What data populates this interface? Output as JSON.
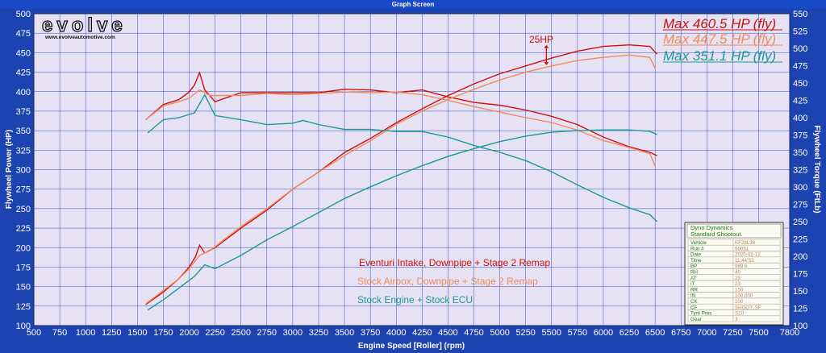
{
  "window": {
    "title": "Graph Screen"
  },
  "brand": {
    "logo_text": "evolve",
    "url": "www.evolveautomotive.com"
  },
  "colors": {
    "red": "#cc1111",
    "orange": "#f08a5a",
    "teal": "#1a9a96",
    "plot_bg": "#e6e2f4",
    "frame": "#1d43b0"
  },
  "chart_data": {
    "type": "line",
    "xlabel": "Engine Speed [Roller] (rpm)",
    "ylabel_left": "Flywheel Power (HP)",
    "ylabel_right": "Flywheel Torque (FtLb)",
    "xlim": [
      500,
      7800
    ],
    "ylim_left": [
      100,
      500
    ],
    "ylim_right": [
      100,
      550
    ],
    "x_ticks": [
      "500",
      "750",
      "1000",
      "1250",
      "1500",
      "1750",
      "2000",
      "2250",
      "2500",
      "2750",
      "3000",
      "3250",
      "3500",
      "3750",
      "4000",
      "4250",
      "4500",
      "4750",
      "5000",
      "5250",
      "5500",
      "5750",
      "6000",
      "6250",
      "6500",
      "6750",
      "7000",
      "7250",
      "7500",
      "7800"
    ],
    "y_ticks_left": [
      "100",
      "125",
      "150",
      "175",
      "200",
      "225",
      "250",
      "275",
      "300",
      "325",
      "350",
      "375",
      "400",
      "425",
      "450",
      "475",
      "500"
    ],
    "y_ticks_right": [
      "100",
      "125",
      "150",
      "175",
      "200",
      "225",
      "250",
      "275",
      "300",
      "325",
      "350",
      "375",
      "400",
      "425",
      "450",
      "475",
      "500",
      "525",
      "550"
    ],
    "max_labels": [
      {
        "text": "Max 460.5 HP (fly)",
        "color": "#cc1111"
      },
      {
        "text": "Max 447.5 HP (fly)",
        "color": "#f08a5a"
      },
      {
        "text": "Max 351.1 HP (fly)",
        "color": "#1a9a96"
      }
    ],
    "annotation": {
      "text": "25HP",
      "x": 5450,
      "y_top_hp": 460,
      "y_bottom_hp": 434
    },
    "series": [
      {
        "name": "Eventuri Intake, Downpipe + Stage 2 Remap",
        "color": "#cc1111",
        "power": [
          [
            1580,
            127
          ],
          [
            1750,
            143
          ],
          [
            1900,
            160
          ],
          [
            2000,
            175
          ],
          [
            2060,
            188
          ],
          [
            2100,
            203
          ],
          [
            2150,
            193
          ],
          [
            2250,
            200
          ],
          [
            2500,
            225
          ],
          [
            2750,
            248
          ],
          [
            3000,
            275
          ],
          [
            3250,
            297
          ],
          [
            3500,
            322
          ],
          [
            3750,
            340
          ],
          [
            4000,
            360
          ],
          [
            4250,
            378
          ],
          [
            4500,
            395
          ],
          [
            4750,
            410
          ],
          [
            5000,
            423
          ],
          [
            5250,
            433
          ],
          [
            5500,
            443
          ],
          [
            5750,
            452
          ],
          [
            6000,
            458
          ],
          [
            6250,
            460
          ],
          [
            6450,
            458
          ],
          [
            6520,
            448
          ]
        ],
        "torque": [
          [
            1580,
            397
          ],
          [
            1750,
            419
          ],
          [
            1900,
            426
          ],
          [
            2000,
            437
          ],
          [
            2050,
            447
          ],
          [
            2100,
            465
          ],
          [
            2150,
            440
          ],
          [
            2250,
            423
          ],
          [
            2500,
            436
          ],
          [
            2750,
            436
          ],
          [
            3000,
            436
          ],
          [
            3250,
            436
          ],
          [
            3500,
            441
          ],
          [
            3750,
            440
          ],
          [
            4000,
            436
          ],
          [
            4250,
            440
          ],
          [
            4500,
            430
          ],
          [
            4750,
            422
          ],
          [
            5000,
            418
          ],
          [
            5250,
            411
          ],
          [
            5500,
            402
          ],
          [
            5750,
            390
          ],
          [
            6000,
            372
          ],
          [
            6250,
            358
          ],
          [
            6450,
            350
          ],
          [
            6520,
            345
          ]
        ]
      },
      {
        "name": "Stock Airbox, Downpipe + Stage 2 Remap",
        "color": "#f08a5a",
        "power": [
          [
            1580,
            128
          ],
          [
            1750,
            145
          ],
          [
            1900,
            160
          ],
          [
            2000,
            173
          ],
          [
            2100,
            190
          ],
          [
            2200,
            196
          ],
          [
            2500,
            227
          ],
          [
            2750,
            250
          ],
          [
            3000,
            275
          ],
          [
            3250,
            297
          ],
          [
            3500,
            318
          ],
          [
            3750,
            337
          ],
          [
            4000,
            358
          ],
          [
            4250,
            375
          ],
          [
            4500,
            390
          ],
          [
            4750,
            403
          ],
          [
            5000,
            415
          ],
          [
            5250,
            425
          ],
          [
            5500,
            433
          ],
          [
            5750,
            440
          ],
          [
            6000,
            444
          ],
          [
            6250,
            447
          ],
          [
            6450,
            444
          ],
          [
            6500,
            430
          ]
        ],
        "torque": [
          [
            1580,
            397
          ],
          [
            1750,
            417
          ],
          [
            1900,
            423
          ],
          [
            2000,
            428
          ],
          [
            2100,
            440
          ],
          [
            2200,
            432
          ],
          [
            2500,
            432
          ],
          [
            2750,
            435
          ],
          [
            3000,
            433
          ],
          [
            3250,
            435
          ],
          [
            3500,
            437
          ],
          [
            3750,
            436
          ],
          [
            4000,
            437
          ],
          [
            4250,
            433
          ],
          [
            4500,
            425
          ],
          [
            4750,
            416
          ],
          [
            5000,
            408
          ],
          [
            5250,
            400
          ],
          [
            5500,
            393
          ],
          [
            5750,
            382
          ],
          [
            6000,
            367
          ],
          [
            6250,
            357
          ],
          [
            6450,
            348
          ],
          [
            6500,
            330
          ]
        ]
      },
      {
        "name": "Stock Engine + Stock ECU",
        "color": "#1a9a96",
        "power": [
          [
            1600,
            120
          ],
          [
            1750,
            133
          ],
          [
            1900,
            148
          ],
          [
            2050,
            163
          ],
          [
            2150,
            178
          ],
          [
            2250,
            173
          ],
          [
            2500,
            190
          ],
          [
            2750,
            210
          ],
          [
            3000,
            227
          ],
          [
            3250,
            245
          ],
          [
            3500,
            263
          ],
          [
            3750,
            278
          ],
          [
            4000,
            292
          ],
          [
            4250,
            305
          ],
          [
            4500,
            317
          ],
          [
            4750,
            327
          ],
          [
            5000,
            336
          ],
          [
            5250,
            343
          ],
          [
            5500,
            348
          ],
          [
            5750,
            350
          ],
          [
            6000,
            351
          ],
          [
            6250,
            351
          ],
          [
            6450,
            349
          ],
          [
            6520,
            345
          ]
        ],
        "torque": [
          [
            1600,
            378
          ],
          [
            1750,
            397
          ],
          [
            1900,
            400
          ],
          [
            2050,
            407
          ],
          [
            2150,
            433
          ],
          [
            2250,
            403
          ],
          [
            2500,
            397
          ],
          [
            2750,
            390
          ],
          [
            3000,
            392
          ],
          [
            3100,
            396
          ],
          [
            3250,
            390
          ],
          [
            3500,
            383
          ],
          [
            3750,
            383
          ],
          [
            4000,
            380
          ],
          [
            4250,
            380
          ],
          [
            4500,
            372
          ],
          [
            4750,
            360
          ],
          [
            5000,
            350
          ],
          [
            5250,
            338
          ],
          [
            5500,
            322
          ],
          [
            5750,
            303
          ],
          [
            6000,
            285
          ],
          [
            6250,
            270
          ],
          [
            6450,
            260
          ],
          [
            6520,
            250
          ]
        ]
      }
    ]
  },
  "legend_labels": [
    {
      "text": "Eventuri Intake, Downpipe + Stage 2 Remap",
      "color": "#cc1111"
    },
    {
      "text": "Stock Airbox, Downpipe + Stage 2 Remap",
      "color": "#f08a5a"
    },
    {
      "text": "Stock Engine + Stock ECU",
      "color": "#1a9a96"
    }
  ],
  "info_box": {
    "title1": "Dyno Dynamics",
    "title2": "Standard Shootout.",
    "rows": [
      [
        "Vehicle",
        "KF28L36"
      ],
      [
        "Run #",
        "50051"
      ],
      [
        "Date",
        "2020-02-12"
      ],
      [
        "Time",
        "11:44:53"
      ],
      [
        "BP",
        "989.6"
      ],
      [
        "RH",
        "40"
      ],
      [
        "AT",
        "25"
      ],
      [
        "IT",
        "23"
      ],
      [
        "RR",
        "150"
      ],
      [
        "IN",
        "100,000"
      ],
      [
        "CK",
        "100"
      ],
      [
        "CF",
        "SHOOT. SF"
      ],
      [
        "Tyre Pres",
        "S10"
      ],
      [
        "Gear",
        "3"
      ]
    ]
  }
}
